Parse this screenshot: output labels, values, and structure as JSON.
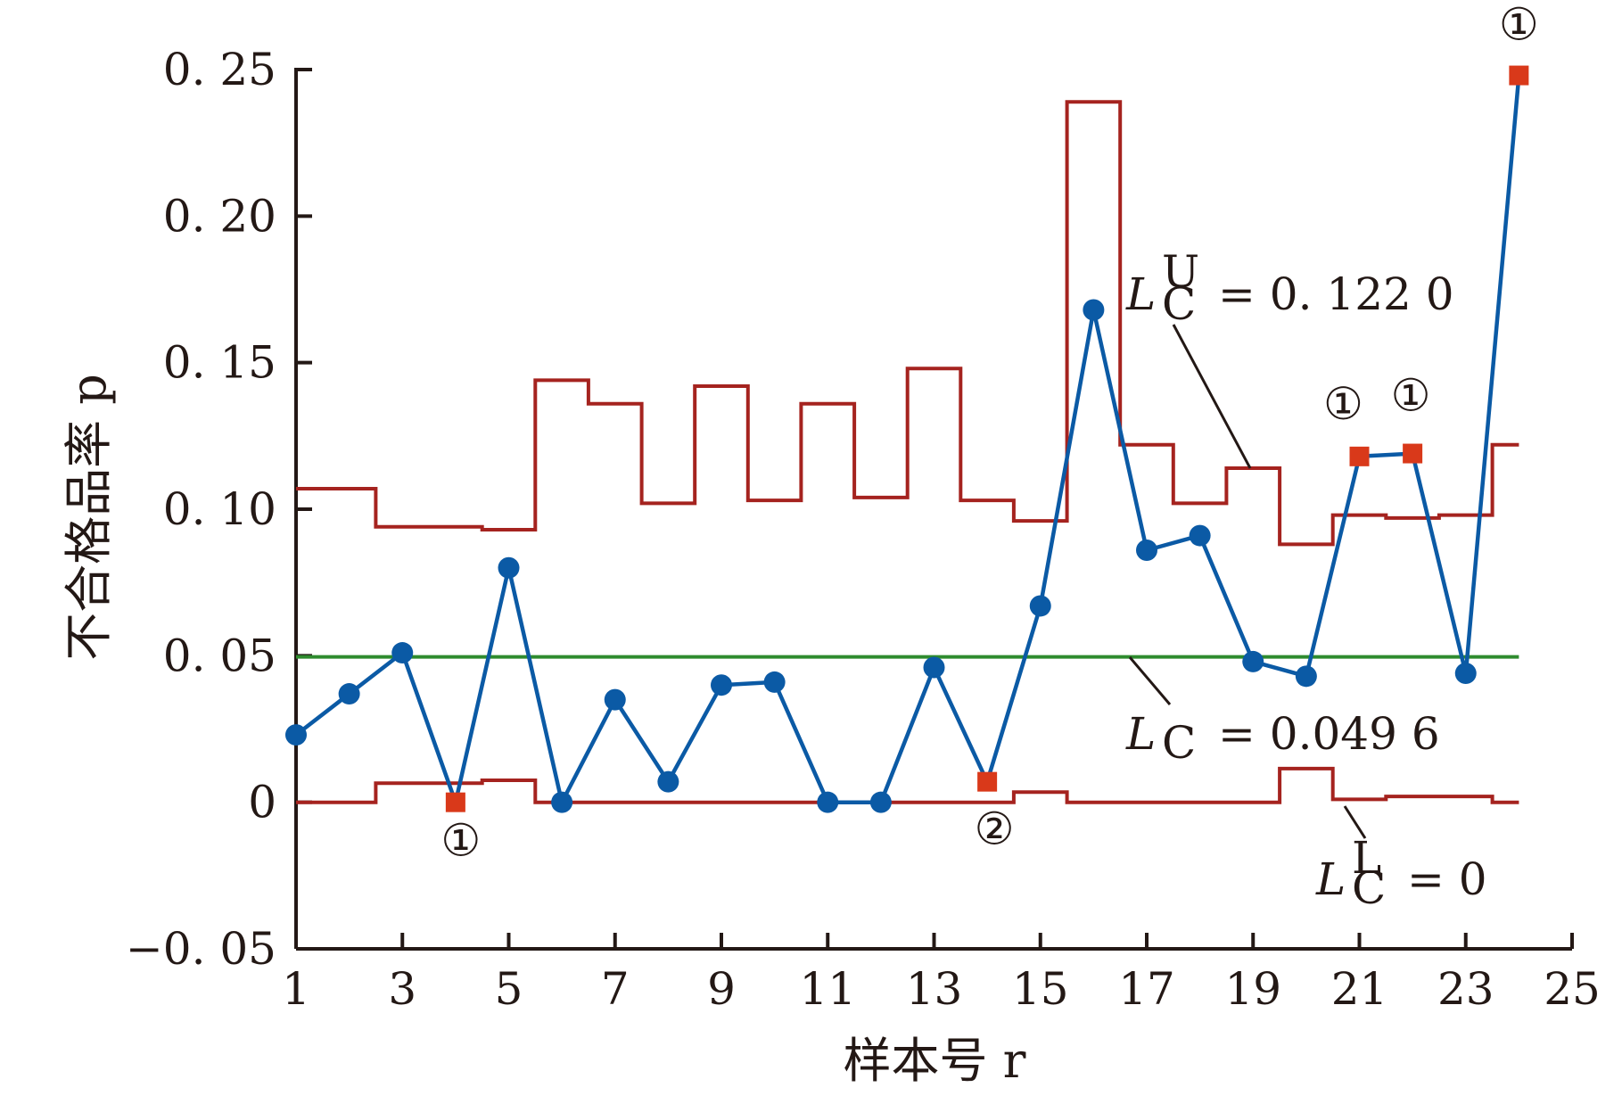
{
  "chart_data": {
    "type": "line",
    "xlabel": "样本号 r",
    "ylabel": "不合格品率 p",
    "xlim": [
      1,
      25
    ],
    "ylim": [
      -0.05,
      0.25
    ],
    "xticks": [
      1,
      3,
      5,
      7,
      9,
      11,
      13,
      15,
      17,
      19,
      21,
      23,
      25
    ],
    "xtick_labels": [
      "1",
      "3",
      "5",
      "7",
      "9",
      "11",
      "13",
      "15",
      "17",
      "19",
      "21",
      "23",
      "25"
    ],
    "yticks": [
      -0.05,
      0,
      0.05,
      0.1,
      0.15,
      0.2,
      0.25
    ],
    "ytick_labels": [
      "−0. 05",
      "0",
      "0. 05",
      "0. 10",
      "0. 15",
      "0. 20",
      "0. 25"
    ],
    "colors": {
      "series": "#0b5aa5",
      "out_of_control": "#d9391a",
      "limits": "#a5231f",
      "center": "#2e8b2e",
      "text": "#231815"
    },
    "series": [
      {
        "values": [
          0.023,
          0.037,
          0.051,
          0.0,
          0.08,
          0.0,
          0.035,
          0.007,
          0.04,
          0.041,
          0.0,
          0.0,
          0.046,
          0.007,
          0.067,
          0.168,
          0.086,
          0.091,
          0.048,
          0.043,
          0.118,
          0.119,
          0.044,
          0.248
        ]
      }
    ],
    "upper_limit": {
      "values": [
        0.107,
        0.107,
        0.094,
        0.094,
        0.093,
        0.144,
        0.136,
        0.102,
        0.142,
        0.103,
        0.136,
        0.104,
        0.148,
        0.103,
        0.096,
        0.239,
        0.122,
        0.102,
        0.114,
        0.088,
        0.098,
        0.097,
        0.098,
        0.122
      ]
    },
    "lower_limit": {
      "values": [
        0,
        0,
        0.0065,
        0.0065,
        0.0075,
        0,
        0,
        0,
        0,
        0,
        0,
        0,
        0,
        0,
        0.0035,
        0,
        0,
        0,
        0,
        0.0115,
        0.001,
        0.002,
        0.002,
        0
      ]
    },
    "center_line": {
      "value": 0.0496
    },
    "special_points": [
      {
        "x": 4,
        "y": 0.0,
        "label": "①"
      },
      {
        "x": 14,
        "y": 0.007,
        "label": "②"
      },
      {
        "x": 21,
        "y": 0.118,
        "label": "①"
      },
      {
        "x": 22,
        "y": 0.119,
        "label": "①"
      },
      {
        "x": 24,
        "y": 0.248,
        "label": "①"
      }
    ],
    "annotations": {
      "ucl": {
        "symbol": "L",
        "sup": "U",
        "sub": "C",
        "text": "= 0. 122 0"
      },
      "cl": {
        "symbol": "L",
        "sub": "C",
        "text": "= 0.049 6"
      },
      "lcl": {
        "symbol": "L",
        "sup": "L",
        "sub": "C",
        "text": "= 0"
      }
    }
  }
}
